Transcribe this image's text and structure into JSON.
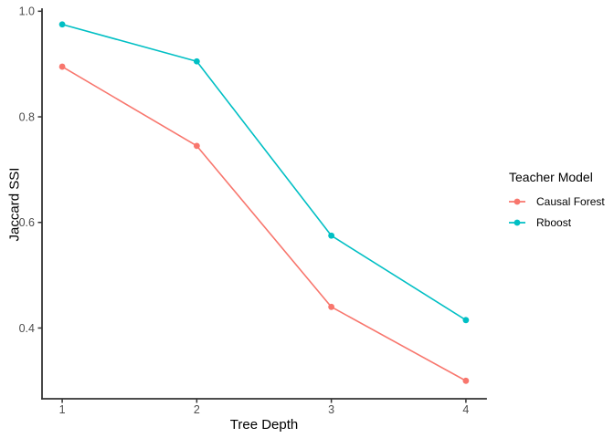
{
  "chart_data": {
    "type": "line",
    "xlabel": "Tree Depth",
    "ylabel": "Jaccard SSI",
    "legend_title": "Teacher Model",
    "legend_position": "right",
    "grid": false,
    "background_color": "#FFFFFF",
    "axis_color": "#333333",
    "tick_label_color": "#4D4D4D",
    "x": [
      1,
      2,
      3,
      4
    ],
    "x_tick_labels": [
      "1",
      "2",
      "3",
      "4"
    ],
    "y_ticks": [
      0.4,
      0.6,
      0.8,
      1.0
    ],
    "y_tick_labels": [
      "0.4",
      "0.6",
      "0.8",
      "1.0"
    ],
    "xlim": [
      0.85,
      4.15
    ],
    "ylim": [
      0.266,
      1.004
    ],
    "series": [
      {
        "name": "Causal Forest",
        "color": "#F8766D",
        "values": [
          0.895,
          0.745,
          0.44,
          0.3
        ]
      },
      {
        "name": "Rboost",
        "color": "#00BFC4",
        "values": [
          0.975,
          0.905,
          0.575,
          0.415
        ]
      }
    ]
  }
}
